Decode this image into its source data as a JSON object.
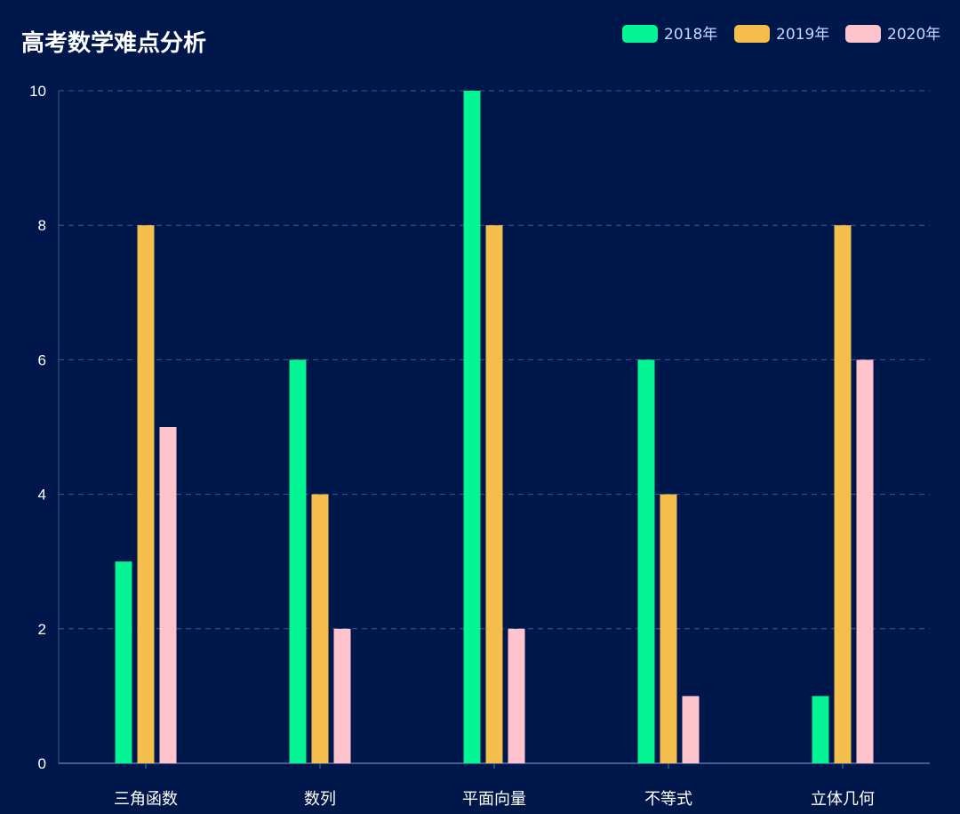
{
  "chart_data": {
    "type": "bar",
    "title": "高考数学难点分析",
    "categories": [
      "三角函数",
      "数列",
      "平面向量",
      "不等式",
      "立体几何"
    ],
    "series": [
      {
        "name": "2018年",
        "values": [
          3,
          6,
          10,
          6,
          1
        ],
        "color": "#03f594"
      },
      {
        "name": "2019年",
        "values": [
          8,
          4,
          8,
          4,
          8
        ],
        "color": "#f4bd4c"
      },
      {
        "name": "2020年",
        "values": [
          5,
          2,
          2,
          1,
          6
        ],
        "color": "#ffc3ce"
      }
    ],
    "ylim": [
      0,
      10
    ],
    "yticks": [
      "0",
      "2",
      "4",
      "6",
      "8",
      "10"
    ],
    "grid": true,
    "legend_position": "top-right",
    "background": "#00174b"
  }
}
